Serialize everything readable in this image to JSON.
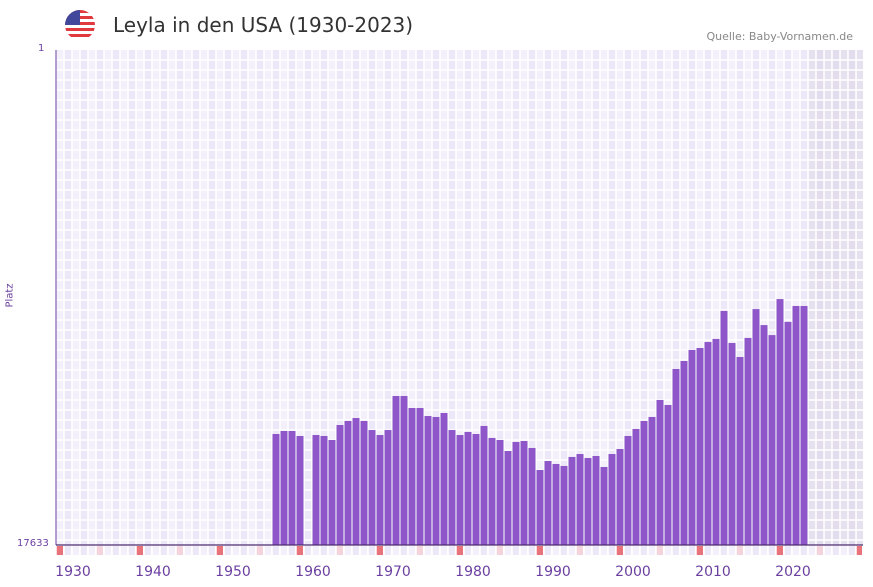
{
  "header": {
    "title": "Leyla in den USA (1930-2023)",
    "source": "Quelle: Baby-Vornamen.de",
    "flag_icon": "us-flag-icon"
  },
  "colors": {
    "bar": "#8e56c8",
    "decade_marker": "#e8737a",
    "half_decade_marker": "#f4d4dc",
    "axis_text": "#6b3fa0",
    "future_shade": "#e3deec"
  },
  "chart_data": {
    "type": "bar",
    "title": "Leyla in den USA (1930-2023)",
    "xlabel": "",
    "ylabel": "Platz",
    "y_scale": "log",
    "y_inverted": true,
    "ylim": [
      1,
      17633
    ],
    "y_tick_labels": [
      "1",
      "17633"
    ],
    "x_range": [
      1930,
      2030
    ],
    "x_tick_labels": [
      "1930",
      "1940",
      "1950",
      "1960",
      "1970",
      "1980",
      "1990",
      "2000",
      "2010",
      "2020"
    ],
    "years": [
      1957,
      1958,
      1959,
      1960,
      1961,
      1962,
      1963,
      1964,
      1965,
      1966,
      1967,
      1968,
      1969,
      1970,
      1971,
      1972,
      1973,
      1974,
      1975,
      1976,
      1977,
      1978,
      1979,
      1980,
      1981,
      1982,
      1983,
      1984,
      1985,
      1986,
      1987,
      1988,
      1989,
      1990,
      1991,
      1992,
      1993,
      1994,
      1995,
      1996,
      1997,
      1998,
      1999,
      2000,
      2001,
      2002,
      2003,
      2004,
      2005,
      2006,
      2007,
      2008,
      2009,
      2010,
      2011,
      2012,
      2013,
      2014,
      2015,
      2016,
      2017,
      2018,
      2019,
      2020,
      2021,
      2022,
      2023
    ],
    "ranks": [
      1968,
      1854,
      1854,
      2047,
      null,
      2008,
      2047,
      2215,
      1648,
      1521,
      1435,
      1521,
      1820,
      2008,
      1820,
      929,
      929,
      1178,
      1178,
      1380,
      1406,
      1300,
      1820,
      2008,
      1892,
      1968,
      1679,
      2128,
      2215,
      2754,
      2305,
      2259,
      2594,
      4008,
      3357,
      3558,
      3700,
      3097,
      2923,
      3160,
      3040,
      3776,
      2923,
      2648,
      2047,
      1783,
      1521,
      1406,
      1005,
      1110,
      545,
      465,
      374,
      360,
      320,
      301,
      173,
      326,
      430,
      295,
      167,
      229,
      279,
      137,
      215,
      157,
      157
    ]
  }
}
